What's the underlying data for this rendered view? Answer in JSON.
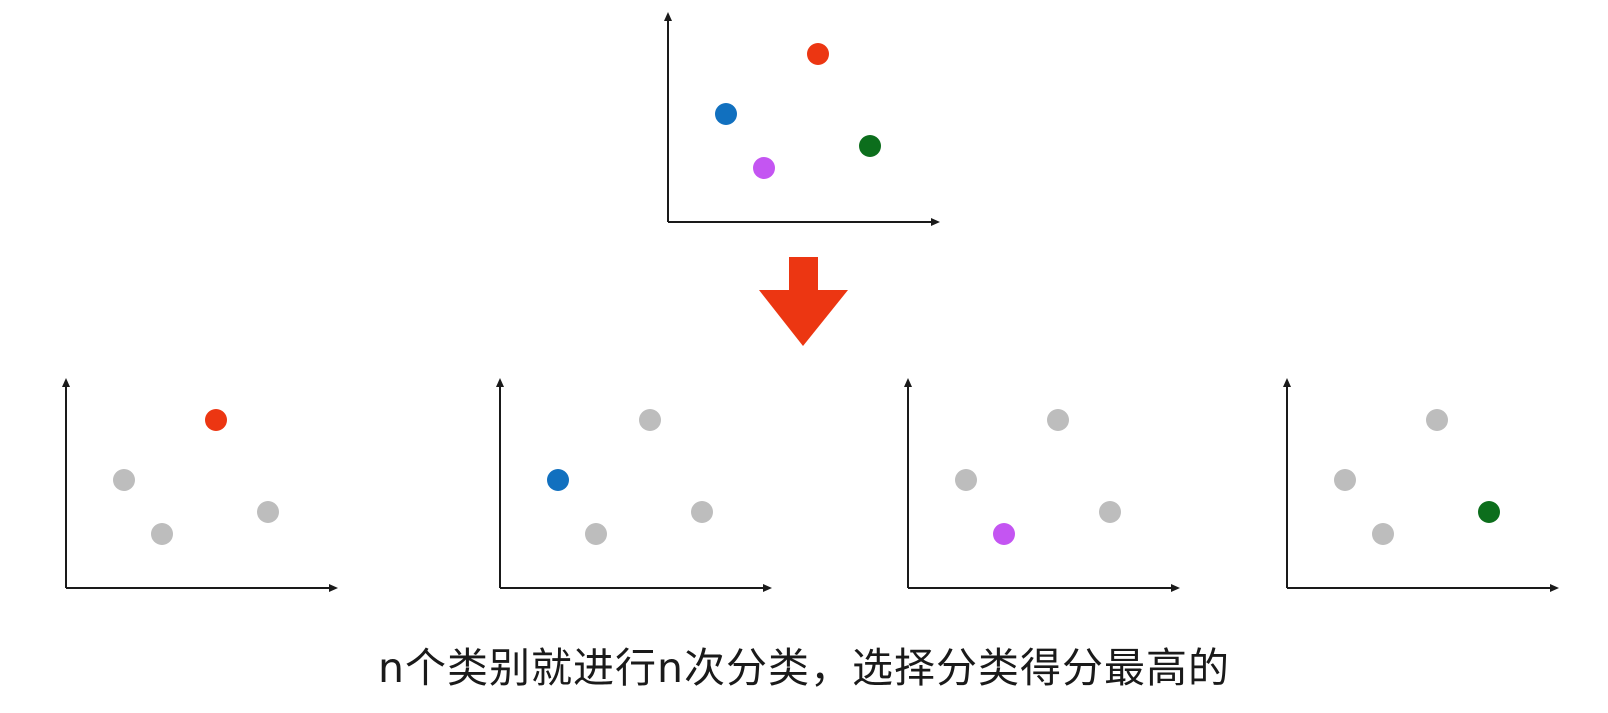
{
  "diagram": {
    "caption": "n个类别就进行n次分类，选择分类得分最高的",
    "colors": {
      "red": "#ec3612",
      "blue": "#1170bf",
      "purple": "#c455f2",
      "green": "#0c6e1c",
      "gray": "#bdbdbd",
      "axis": "#1a1a1a",
      "arrow": "#ec3612"
    },
    "classes": [
      {
        "id": "red",
        "color": "#ec3612"
      },
      {
        "id": "blue",
        "color": "#1170bf"
      },
      {
        "id": "purple",
        "color": "#c455f2"
      },
      {
        "id": "green",
        "color": "#0c6e1c"
      }
    ],
    "subplots": [
      {
        "highlight": "red"
      },
      {
        "highlight": "blue"
      },
      {
        "highlight": "purple"
      },
      {
        "highlight": "green"
      }
    ],
    "arrow": {
      "direction": "down",
      "icon": "down-arrow-icon"
    }
  }
}
